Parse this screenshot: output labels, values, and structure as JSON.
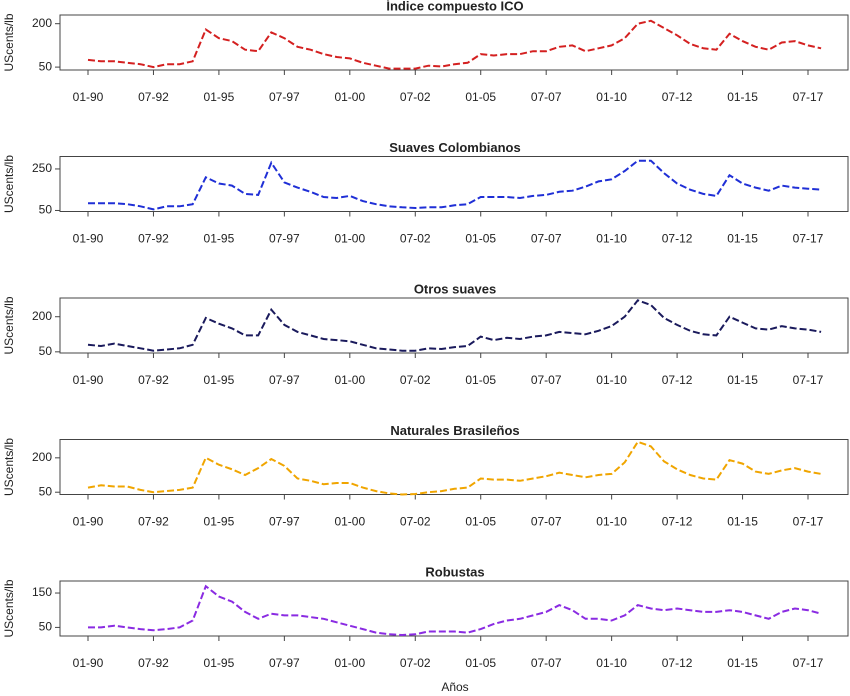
{
  "chart_data": [
    {
      "type": "line",
      "title": "Índice compuesto ICO",
      "y_label": "UScents/lb",
      "color": "#d42020",
      "x": [
        "01-90",
        "07-90",
        "01-91",
        "07-91",
        "01-92",
        "07-92",
        "01-93",
        "07-93",
        "01-94",
        "07-94",
        "01-95",
        "07-95",
        "01-96",
        "07-96",
        "01-97",
        "07-97",
        "01-98",
        "07-98",
        "01-99",
        "07-99",
        "01-00",
        "07-00",
        "01-01",
        "07-01",
        "01-02",
        "07-02",
        "01-03",
        "07-03",
        "01-04",
        "07-04",
        "01-05",
        "07-05",
        "01-06",
        "07-06",
        "01-07",
        "07-07",
        "01-08",
        "07-08",
        "01-09",
        "07-09",
        "01-10",
        "07-10",
        "01-11",
        "07-11",
        "01-12",
        "07-12",
        "01-13",
        "07-13",
        "01-14",
        "07-14",
        "01-15",
        "07-15",
        "01-16",
        "07-16",
        "01-17",
        "07-17",
        "01-18"
      ],
      "values": [
        75,
        70,
        70,
        65,
        60,
        50,
        60,
        60,
        70,
        180,
        150,
        140,
        110,
        105,
        170,
        150,
        120,
        110,
        95,
        85,
        80,
        65,
        55,
        45,
        45,
        45,
        55,
        52,
        60,
        65,
        95,
        90,
        95,
        95,
        105,
        105,
        120,
        125,
        105,
        115,
        125,
        150,
        200,
        210,
        185,
        160,
        130,
        115,
        110,
        165,
        140,
        120,
        110,
        135,
        140,
        125,
        115
      ],
      "xticks": [
        "01-90",
        "07-92",
        "01-95",
        "07-97",
        "01-00",
        "07-02",
        "01-05",
        "07-07",
        "01-10",
        "07-12",
        "01-15",
        "07-17"
      ],
      "ylim": [
        40,
        230
      ],
      "yticks": [
        50,
        200
      ]
    },
    {
      "type": "line",
      "title": "Suaves Colombianos",
      "y_label": "UScents/lb",
      "color": "#1f2fd6",
      "x": [
        "01-90",
        "07-90",
        "01-91",
        "07-91",
        "01-92",
        "07-92",
        "01-93",
        "07-93",
        "01-94",
        "07-94",
        "01-95",
        "07-95",
        "01-96",
        "07-96",
        "01-97",
        "07-97",
        "01-98",
        "07-98",
        "01-99",
        "07-99",
        "01-00",
        "07-00",
        "01-01",
        "07-01",
        "01-02",
        "07-02",
        "01-03",
        "07-03",
        "01-04",
        "07-04",
        "01-05",
        "07-05",
        "01-06",
        "07-06",
        "01-07",
        "07-07",
        "01-08",
        "07-08",
        "01-09",
        "07-09",
        "01-10",
        "07-10",
        "01-11",
        "07-11",
        "01-12",
        "07-12",
        "01-13",
        "07-13",
        "01-14",
        "07-14",
        "01-15",
        "07-15",
        "01-16",
        "07-16",
        "01-17",
        "07-17",
        "01-18"
      ],
      "values": [
        85,
        85,
        85,
        80,
        70,
        55,
        70,
        70,
        80,
        210,
        180,
        170,
        130,
        125,
        280,
        185,
        160,
        140,
        115,
        110,
        120,
        95,
        80,
        70,
        65,
        62,
        65,
        65,
        75,
        80,
        115,
        115,
        115,
        110,
        120,
        125,
        140,
        145,
        165,
        190,
        200,
        240,
        290,
        290,
        230,
        180,
        150,
        130,
        120,
        220,
        180,
        160,
        145,
        170,
        160,
        155,
        150
      ],
      "xticks": [
        "01-90",
        "07-92",
        "01-95",
        "07-97",
        "01-00",
        "07-02",
        "01-05",
        "07-07",
        "01-10",
        "07-12",
        "01-15",
        "07-17"
      ],
      "ylim": [
        45,
        310
      ],
      "yticks": [
        50,
        250
      ]
    },
    {
      "type": "line",
      "title": "Otros suaves",
      "y_label": "UScents/lb",
      "color": "#1a1a5c",
      "x": [
        "01-90",
        "07-90",
        "01-91",
        "07-91",
        "01-92",
        "07-92",
        "01-93",
        "07-93",
        "01-94",
        "07-94",
        "01-95",
        "07-95",
        "01-96",
        "07-96",
        "01-97",
        "07-97",
        "01-98",
        "07-98",
        "01-99",
        "07-99",
        "01-00",
        "07-00",
        "01-01",
        "07-01",
        "01-02",
        "07-02",
        "01-03",
        "07-03",
        "01-04",
        "07-04",
        "01-05",
        "07-05",
        "01-06",
        "07-06",
        "01-07",
        "07-07",
        "01-08",
        "07-08",
        "01-09",
        "07-09",
        "01-10",
        "07-10",
        "01-11",
        "07-11",
        "01-12",
        "07-12",
        "01-13",
        "07-13",
        "01-14",
        "07-14",
        "01-15",
        "07-15",
        "01-16",
        "07-16",
        "01-17",
        "07-17",
        "01-18"
      ],
      "values": [
        80,
        75,
        85,
        75,
        65,
        55,
        60,
        65,
        80,
        195,
        170,
        150,
        120,
        120,
        230,
        165,
        135,
        120,
        105,
        100,
        95,
        80,
        65,
        60,
        55,
        55,
        65,
        62,
        70,
        75,
        115,
        100,
        110,
        105,
        115,
        120,
        135,
        130,
        125,
        140,
        160,
        200,
        270,
        250,
        195,
        165,
        140,
        125,
        120,
        200,
        175,
        150,
        145,
        160,
        150,
        145,
        135
      ],
      "xticks": [
        "01-90",
        "07-92",
        "01-95",
        "07-97",
        "01-00",
        "07-02",
        "01-05",
        "07-07",
        "01-10",
        "07-12",
        "01-15",
        "07-17"
      ],
      "ylim": [
        45,
        280
      ],
      "yticks": [
        50,
        200
      ]
    },
    {
      "type": "line",
      "title": "Naturales Brasileños",
      "y_label": "UScents/lb",
      "color": "#f0a500",
      "x": [
        "01-90",
        "07-90",
        "01-91",
        "07-91",
        "01-92",
        "07-92",
        "01-93",
        "07-93",
        "01-94",
        "07-94",
        "01-95",
        "07-95",
        "01-96",
        "07-96",
        "01-97",
        "07-97",
        "01-98",
        "07-98",
        "01-99",
        "07-99",
        "01-00",
        "07-00",
        "01-01",
        "07-01",
        "01-02",
        "07-02",
        "01-03",
        "07-03",
        "01-04",
        "07-04",
        "01-05",
        "07-05",
        "01-06",
        "07-06",
        "01-07",
        "07-07",
        "01-08",
        "07-08",
        "01-09",
        "07-09",
        "01-10",
        "07-10",
        "01-11",
        "07-11",
        "01-12",
        "07-12",
        "01-13",
        "07-13",
        "01-14",
        "07-14",
        "01-15",
        "07-15",
        "01-16",
        "07-16",
        "01-17",
        "07-17",
        "01-18"
      ],
      "values": [
        70,
        80,
        75,
        75,
        60,
        50,
        55,
        60,
        70,
        200,
        170,
        150,
        125,
        155,
        195,
        165,
        110,
        100,
        85,
        90,
        90,
        70,
        55,
        45,
        40,
        42,
        50,
        55,
        65,
        70,
        110,
        105,
        105,
        100,
        110,
        120,
        135,
        125,
        115,
        125,
        130,
        180,
        270,
        250,
        185,
        150,
        125,
        110,
        105,
        190,
        175,
        140,
        130,
        145,
        155,
        140,
        130
      ],
      "xticks": [
        "01-90",
        "07-92",
        "01-95",
        "07-97",
        "01-00",
        "07-02",
        "01-05",
        "07-07",
        "01-10",
        "07-12",
        "01-15",
        "07-17"
      ],
      "ylim": [
        40,
        280
      ],
      "yticks": [
        50,
        200
      ]
    },
    {
      "type": "line",
      "title": "Robustas",
      "y_label": "UScents/lb",
      "color": "#8a2be2",
      "x": [
        "01-90",
        "07-90",
        "01-91",
        "07-91",
        "01-92",
        "07-92",
        "01-93",
        "07-93",
        "01-94",
        "07-94",
        "01-95",
        "07-95",
        "01-96",
        "07-96",
        "01-97",
        "07-97",
        "01-98",
        "07-98",
        "01-99",
        "07-99",
        "01-00",
        "07-00",
        "01-01",
        "07-01",
        "01-02",
        "07-02",
        "01-03",
        "07-03",
        "01-04",
        "07-04",
        "01-05",
        "07-05",
        "01-06",
        "07-06",
        "01-07",
        "07-07",
        "01-08",
        "07-08",
        "01-09",
        "07-09",
        "01-10",
        "07-10",
        "01-11",
        "07-11",
        "01-12",
        "07-12",
        "01-13",
        "07-13",
        "01-14",
        "07-14",
        "01-15",
        "07-15",
        "01-16",
        "07-16",
        "01-17",
        "07-17",
        "01-18"
      ],
      "values": [
        50,
        50,
        55,
        50,
        45,
        42,
        45,
        50,
        70,
        170,
        140,
        125,
        95,
        75,
        90,
        85,
        85,
        80,
        75,
        65,
        55,
        45,
        35,
        30,
        28,
        30,
        38,
        38,
        38,
        35,
        45,
        60,
        70,
        75,
        85,
        95,
        115,
        100,
        75,
        75,
        70,
        85,
        115,
        105,
        100,
        105,
        100,
        95,
        95,
        100,
        95,
        85,
        75,
        95,
        105,
        100,
        90
      ],
      "xticks": [
        "01-90",
        "07-92",
        "01-95",
        "07-97",
        "01-00",
        "07-02",
        "01-05",
        "07-07",
        "01-10",
        "07-12",
        "01-15",
        "07-17"
      ],
      "ylim": [
        25,
        185
      ],
      "yticks": [
        50,
        150
      ]
    }
  ],
  "x_label": "Años"
}
